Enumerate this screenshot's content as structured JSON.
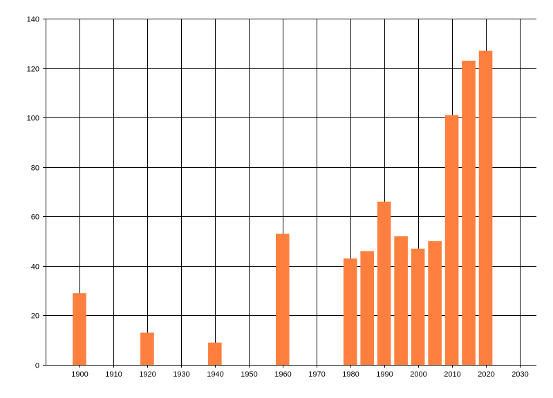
{
  "chart_data": {
    "type": "bar",
    "title": "",
    "xlabel": "",
    "ylabel": "",
    "x": [
      1900,
      1920,
      1940,
      1960,
      1980,
      1985,
      1990,
      1995,
      2000,
      2005,
      2010,
      2015,
      2020
    ],
    "values": [
      29,
      13,
      9,
      53,
      43,
      46,
      66,
      52,
      47,
      50,
      101,
      123,
      127
    ],
    "bar_width": 4,
    "xlim": [
      1890,
      2035
    ],
    "ylim": [
      0,
      140
    ],
    "xticks": [
      1900,
      1910,
      1920,
      1930,
      1940,
      1950,
      1960,
      1970,
      1980,
      1990,
      2000,
      2010,
      2020,
      2030
    ],
    "yticks": [
      0,
      20,
      40,
      60,
      80,
      100,
      120,
      140
    ],
    "grid": true,
    "legend": "none",
    "colors": {
      "bar": "#ff7f3f",
      "grid": "#000000",
      "axis": "#000000",
      "text": "#000000"
    }
  }
}
